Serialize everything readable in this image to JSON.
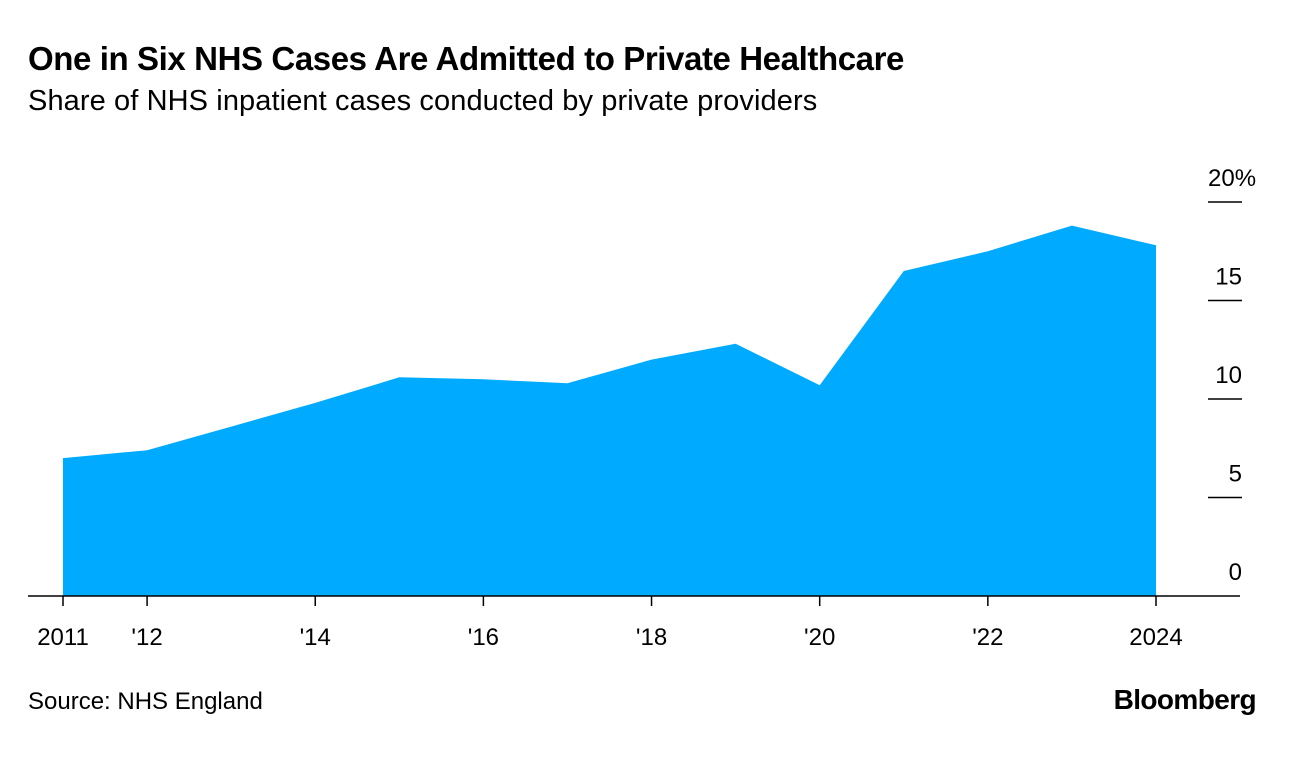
{
  "header": {
    "title": "One in Six NHS Cases Are Admitted to Private Healthcare",
    "subtitle": "Share of NHS inpatient cases conducted by private providers"
  },
  "footer": {
    "source": "Source: NHS England",
    "brand": "Bloomberg"
  },
  "colors": {
    "area_fill": "#00aaff",
    "axis": "#000000",
    "text": "#000000"
  },
  "chart_data": {
    "type": "area",
    "title": "One in Six NHS Cases Are Admitted to Private Healthcare",
    "subtitle": "Share of NHS inpatient cases conducted by private providers",
    "x": [
      2011,
      2012,
      2013,
      2014,
      2015,
      2016,
      2017,
      2018,
      2019,
      2020,
      2021,
      2022,
      2023,
      2024
    ],
    "series": [
      {
        "values": [
          7.0,
          7.4,
          8.6,
          9.8,
          11.1,
          11.0,
          10.8,
          12.0,
          12.8,
          10.7,
          16.5,
          17.5,
          18.8,
          17.8
        ]
      }
    ],
    "xlim": [
      2011,
      2024
    ],
    "ylim": [
      0,
      20
    ],
    "x_ticks": [
      {
        "value": 2011,
        "label": "2011"
      },
      {
        "value": 2012,
        "label": "'12"
      },
      {
        "value": 2014,
        "label": "'14"
      },
      {
        "value": 2016,
        "label": "'16"
      },
      {
        "value": 2018,
        "label": "'18"
      },
      {
        "value": 2020,
        "label": "'20"
      },
      {
        "value": 2022,
        "label": "'22"
      },
      {
        "value": 2024,
        "label": "2024"
      }
    ],
    "y_ticks": [
      {
        "value": 20,
        "label": "20%"
      },
      {
        "value": 15,
        "label": "15"
      },
      {
        "value": 10,
        "label": "10"
      },
      {
        "value": 5,
        "label": "5"
      },
      {
        "value": 0,
        "label": "0"
      }
    ],
    "y_axis_side": "right",
    "grid": false,
    "legend": "none"
  }
}
